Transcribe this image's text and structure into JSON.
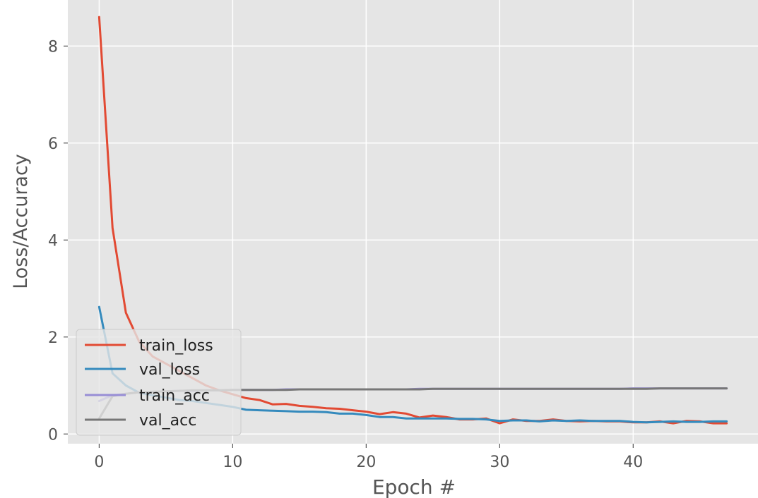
{
  "chart_data": {
    "type": "line",
    "title": "",
    "xlabel": "Epoch #",
    "ylabel": "Loss/Accuracy",
    "xlim": [
      -2.35,
      49.35
    ],
    "ylim": [
      -0.2,
      8.95
    ],
    "x_ticks": [
      0,
      10,
      20,
      30,
      40
    ],
    "y_ticks": [
      0,
      2,
      4,
      6,
      8
    ],
    "grid": true,
    "legend_position": "lower-left",
    "colors": {
      "plot_background": "#e5e5e5",
      "grid": "#ffffff",
      "axis_text": "#555555",
      "label_text": "#555555",
      "legend_background": "#e5e5e5",
      "legend_border": "#cccccc"
    },
    "x": [
      0,
      1,
      2,
      3,
      4,
      5,
      6,
      7,
      8,
      9,
      10,
      11,
      12,
      13,
      14,
      15,
      16,
      17,
      18,
      19,
      20,
      21,
      22,
      23,
      24,
      25,
      26,
      27,
      28,
      29,
      30,
      31,
      32,
      33,
      34,
      35,
      36,
      37,
      38,
      39,
      40,
      41,
      42,
      43,
      44,
      45,
      46,
      47
    ],
    "series": [
      {
        "name": "train_loss",
        "color": "#e24a33",
        "values": [
          8.6,
          4.25,
          2.5,
          1.9,
          1.6,
          1.45,
          1.3,
          1.15,
          1.0,
          0.9,
          0.82,
          0.74,
          0.7,
          0.61,
          0.62,
          0.58,
          0.56,
          0.53,
          0.52,
          0.49,
          0.46,
          0.41,
          0.45,
          0.42,
          0.34,
          0.38,
          0.35,
          0.3,
          0.3,
          0.32,
          0.22,
          0.3,
          0.27,
          0.27,
          0.3,
          0.27,
          0.26,
          0.27,
          0.26,
          0.26,
          0.24,
          0.24,
          0.26,
          0.22,
          0.27,
          0.26,
          0.22,
          0.22
        ]
      },
      {
        "name": "val_loss",
        "color": "#348abd",
        "values": [
          2.62,
          1.25,
          1.0,
          0.85,
          0.8,
          0.75,
          0.7,
          0.68,
          0.64,
          0.6,
          0.56,
          0.5,
          0.49,
          0.48,
          0.47,
          0.46,
          0.46,
          0.45,
          0.42,
          0.42,
          0.39,
          0.35,
          0.35,
          0.32,
          0.32,
          0.32,
          0.32,
          0.31,
          0.31,
          0.3,
          0.27,
          0.28,
          0.28,
          0.26,
          0.28,
          0.27,
          0.28,
          0.27,
          0.27,
          0.27,
          0.25,
          0.24,
          0.25,
          0.26,
          0.25,
          0.25,
          0.26,
          0.26
        ]
      },
      {
        "name": "train_acc",
        "color": "#988ed5",
        "values": [
          0.68,
          0.8,
          0.83,
          0.86,
          0.87,
          0.88,
          0.89,
          0.89,
          0.9,
          0.9,
          0.91,
          0.91,
          0.91,
          0.91,
          0.92,
          0.92,
          0.92,
          0.92,
          0.92,
          0.92,
          0.92,
          0.92,
          0.92,
          0.92,
          0.93,
          0.93,
          0.93,
          0.93,
          0.93,
          0.93,
          0.93,
          0.93,
          0.93,
          0.93,
          0.93,
          0.93,
          0.93,
          0.93,
          0.93,
          0.93,
          0.94,
          0.94,
          0.94,
          0.94,
          0.94,
          0.94,
          0.94,
          0.94
        ]
      },
      {
        "name": "val_acc",
        "color": "#777777",
        "values": [
          0.32,
          0.78,
          0.83,
          0.86,
          0.87,
          0.88,
          0.89,
          0.9,
          0.9,
          0.9,
          0.91,
          0.91,
          0.91,
          0.91,
          0.91,
          0.92,
          0.92,
          0.92,
          0.92,
          0.92,
          0.92,
          0.92,
          0.92,
          0.92,
          0.92,
          0.93,
          0.93,
          0.93,
          0.93,
          0.93,
          0.93,
          0.93,
          0.93,
          0.93,
          0.93,
          0.93,
          0.93,
          0.93,
          0.93,
          0.93,
          0.93,
          0.93,
          0.94,
          0.94,
          0.94,
          0.94,
          0.94,
          0.94
        ]
      }
    ]
  }
}
